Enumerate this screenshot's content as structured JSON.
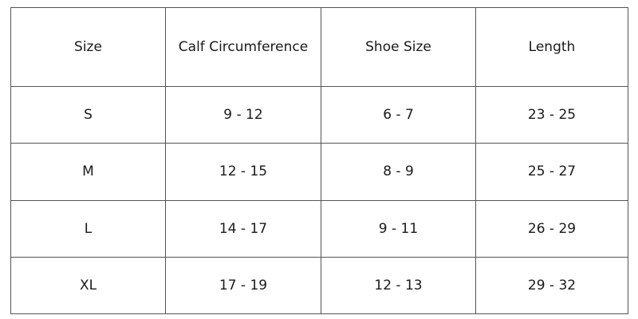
{
  "table": {
    "headers": [
      "Size",
      "Calf Circumference",
      "Shoe Size",
      "Length"
    ],
    "rows": [
      [
        "S",
        "9 - 12",
        "6 - 7",
        "23 - 25"
      ],
      [
        "M",
        "12 - 15",
        "8 - 9",
        "25 - 27"
      ],
      [
        "L",
        "14 - 17",
        "9 - 11",
        "26 - 29"
      ],
      [
        "XL",
        "17 - 19",
        "12 - 13",
        "29 - 32"
      ]
    ]
  }
}
